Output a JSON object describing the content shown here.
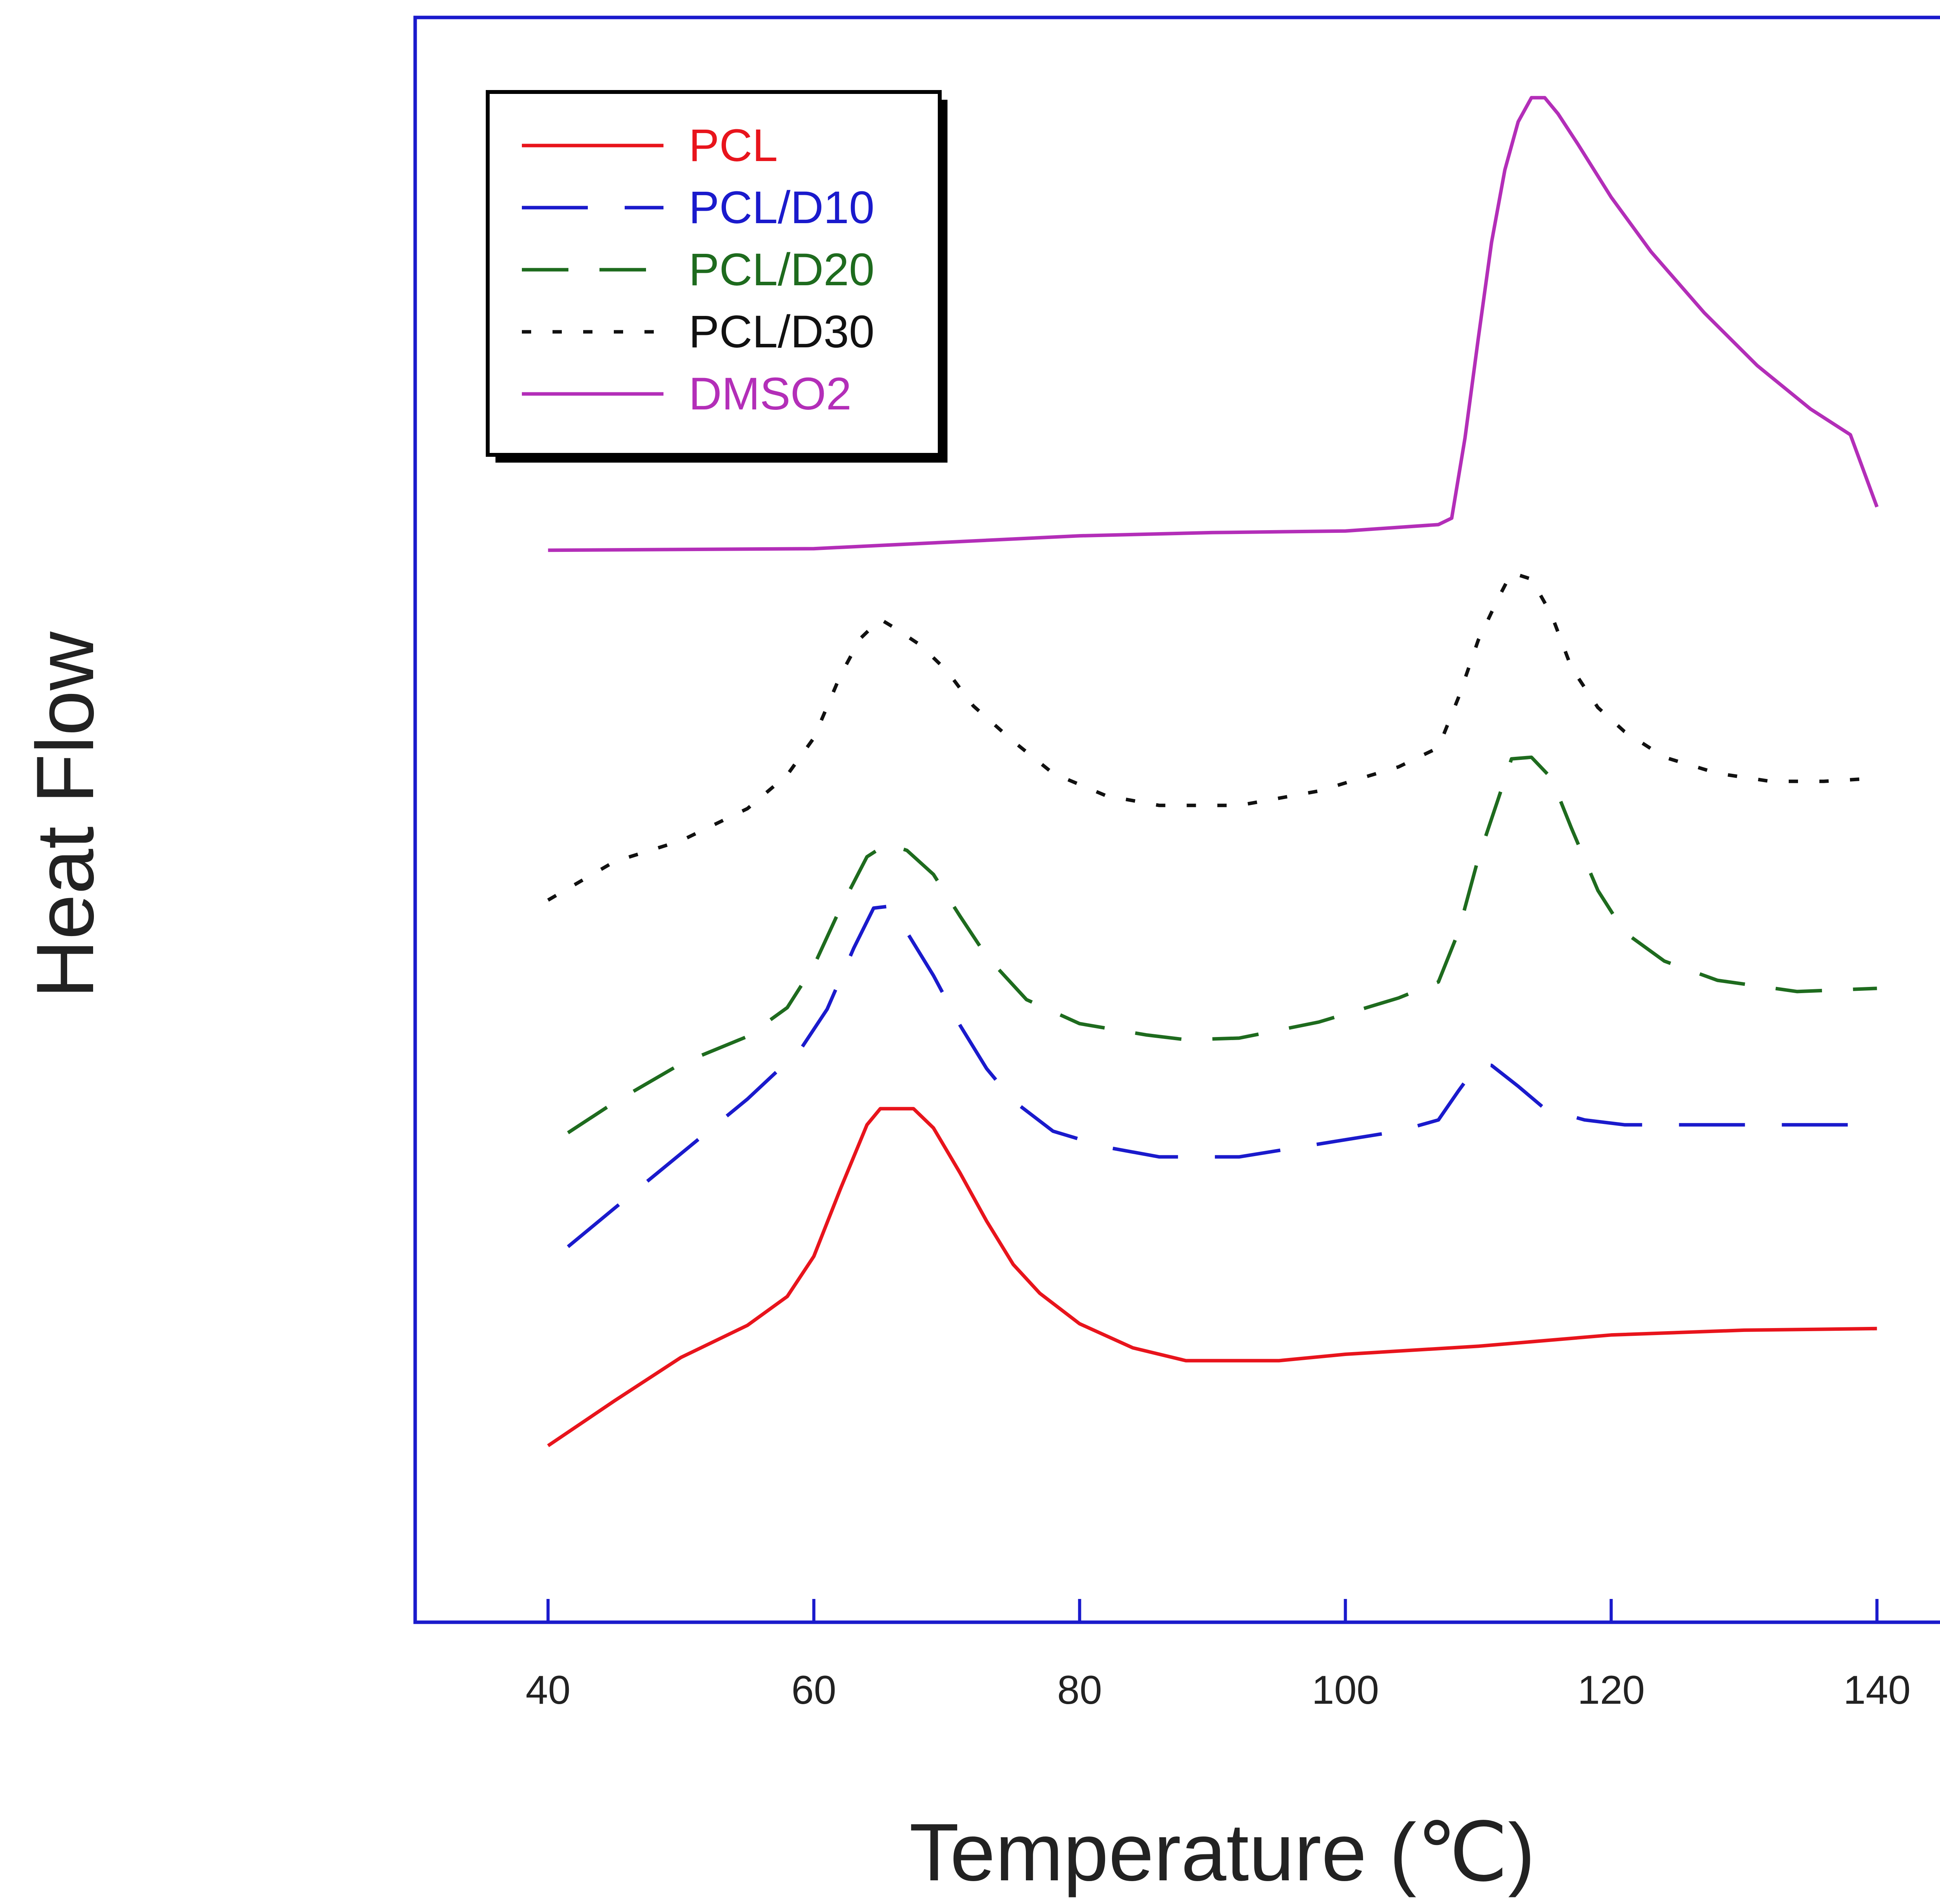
{
  "chart_data": {
    "type": "line",
    "title": "",
    "xlabel": "Temperature (℃)",
    "ylabel": "Heat Flow",
    "xlim": [
      30,
      150
    ],
    "ylim": [
      0,
      100
    ],
    "xticks": [
      40,
      60,
      80,
      100,
      120,
      140
    ],
    "y_tick_labels_shown": false,
    "grid": false,
    "legend_position": "top-left",
    "frame_color": "#1a1acc",
    "series": [
      {
        "name": "PCL",
        "color": "#e8141c",
        "dash": "solid",
        "points": [
          [
            40,
            11
          ],
          [
            45,
            13.8
          ],
          [
            50,
            16.5
          ],
          [
            55,
            18.5
          ],
          [
            58,
            20.3
          ],
          [
            60,
            22.8
          ],
          [
            62,
            27
          ],
          [
            64,
            31
          ],
          [
            65,
            32
          ],
          [
            66,
            32
          ],
          [
            67.5,
            32
          ],
          [
            69,
            30.8
          ],
          [
            71,
            28
          ],
          [
            73,
            25
          ],
          [
            75,
            22.3
          ],
          [
            77,
            20.5
          ],
          [
            80,
            18.6
          ],
          [
            84,
            17.1
          ],
          [
            88,
            16.3
          ],
          [
            95,
            16.3
          ],
          [
            100,
            16.7
          ],
          [
            110,
            17.2
          ],
          [
            120,
            17.9
          ],
          [
            130,
            18.2
          ],
          [
            140,
            18.3
          ]
        ]
      },
      {
        "name": "PCL/D10",
        "color": "#1a1acc",
        "dash": "longgap",
        "points": [
          [
            41.5,
            23.4
          ],
          [
            45,
            25.8
          ],
          [
            50,
            29.2
          ],
          [
            55,
            32.6
          ],
          [
            59,
            35.7
          ],
          [
            61,
            38.2
          ],
          [
            63,
            42
          ],
          [
            64.5,
            44.5
          ],
          [
            65.5,
            44.6
          ],
          [
            67,
            43
          ],
          [
            69,
            40.3
          ],
          [
            71,
            37.2
          ],
          [
            73,
            34.5
          ],
          [
            75,
            32.5
          ],
          [
            78,
            30.6
          ],
          [
            82,
            29.6
          ],
          [
            86,
            29
          ],
          [
            92,
            29
          ],
          [
            98,
            29.8
          ],
          [
            104,
            30.6
          ],
          [
            107,
            31.3
          ],
          [
            108.5,
            33.1
          ],
          [
            110,
            34.8
          ],
          [
            111,
            34.7
          ],
          [
            113,
            33.4
          ],
          [
            115,
            32
          ],
          [
            118,
            31.3
          ],
          [
            121,
            31
          ],
          [
            130,
            31
          ],
          [
            140,
            31
          ]
        ]
      },
      {
        "name": "PCL/D20",
        "color": "#1e6b1e",
        "dash": "longdash",
        "points": [
          [
            41.5,
            30.5
          ],
          [
            45,
            32.4
          ],
          [
            50,
            34.8
          ],
          [
            55,
            36.5
          ],
          [
            58,
            38.3
          ],
          [
            60,
            40.9
          ],
          [
            62,
            44.5
          ],
          [
            64,
            47.7
          ],
          [
            65.5,
            48.5
          ],
          [
            67,
            48.1
          ],
          [
            69,
            46.6
          ],
          [
            71,
            44
          ],
          [
            73,
            41.5
          ],
          [
            76,
            38.8
          ],
          [
            80,
            37.3
          ],
          [
            85,
            36.6
          ],
          [
            88,
            36.3
          ],
          [
            92,
            36.4
          ],
          [
            98,
            37.4
          ],
          [
            104,
            38.9
          ],
          [
            107,
            39.9
          ],
          [
            108.5,
            43
          ],
          [
            110,
            47.6
          ],
          [
            111.5,
            51.3
          ],
          [
            112.5,
            53.8
          ],
          [
            114,
            53.9
          ],
          [
            115.5,
            52.6
          ],
          [
            117,
            49.5
          ],
          [
            119,
            45.6
          ],
          [
            121,
            43
          ],
          [
            124,
            41.2
          ],
          [
            128,
            40
          ],
          [
            134,
            39.3
          ],
          [
            140,
            39.5
          ]
        ]
      },
      {
        "name": "PCL/D30",
        "color": "#111111",
        "dash": "dot",
        "points": [
          [
            40,
            45
          ],
          [
            45,
            47.4
          ],
          [
            50,
            48.7
          ],
          [
            55,
            50.7
          ],
          [
            58,
            52.8
          ],
          [
            60,
            55.1
          ],
          [
            62,
            59
          ],
          [
            63.5,
            61.3
          ],
          [
            65,
            62.5
          ],
          [
            66,
            62
          ],
          [
            68,
            60.9
          ],
          [
            70,
            59.3
          ],
          [
            72,
            57.1
          ],
          [
            75,
            54.9
          ],
          [
            78,
            52.9
          ],
          [
            82,
            51.5
          ],
          [
            86,
            50.9
          ],
          [
            92,
            50.9
          ],
          [
            98,
            51.8
          ],
          [
            104,
            53.3
          ],
          [
            107,
            54.5
          ],
          [
            108.5,
            57.6
          ],
          [
            110,
            61.2
          ],
          [
            111.5,
            63.8
          ],
          [
            112.5,
            65.4
          ],
          [
            114,
            65
          ],
          [
            115.5,
            62.8
          ],
          [
            117,
            59.5
          ],
          [
            119,
            57
          ],
          [
            121,
            55.5
          ],
          [
            124,
            53.9
          ],
          [
            128,
            52.9
          ],
          [
            132,
            52.4
          ],
          [
            136,
            52.4
          ],
          [
            140,
            52.6
          ]
        ]
      },
      {
        "name": "DMSO2",
        "color": "#b32eb8",
        "dash": "solid",
        "points": [
          [
            40,
            66.8
          ],
          [
            60,
            66.9
          ],
          [
            70,
            67.3
          ],
          [
            80,
            67.7
          ],
          [
            90,
            67.9
          ],
          [
            100,
            68
          ],
          [
            107,
            68.4
          ],
          [
            108,
            68.8
          ],
          [
            109,
            73.8
          ],
          [
            110,
            80
          ],
          [
            111,
            86
          ],
          [
            112,
            90.5
          ],
          [
            113,
            93.5
          ],
          [
            114,
            95
          ],
          [
            115,
            95
          ],
          [
            116,
            94
          ],
          [
            117.5,
            92.1
          ],
          [
            120,
            88.8
          ],
          [
            123,
            85.4
          ],
          [
            127,
            81.6
          ],
          [
            131,
            78.3
          ],
          [
            135,
            75.6
          ],
          [
            138,
            74
          ],
          [
            140,
            69.5
          ]
        ]
      }
    ]
  }
}
